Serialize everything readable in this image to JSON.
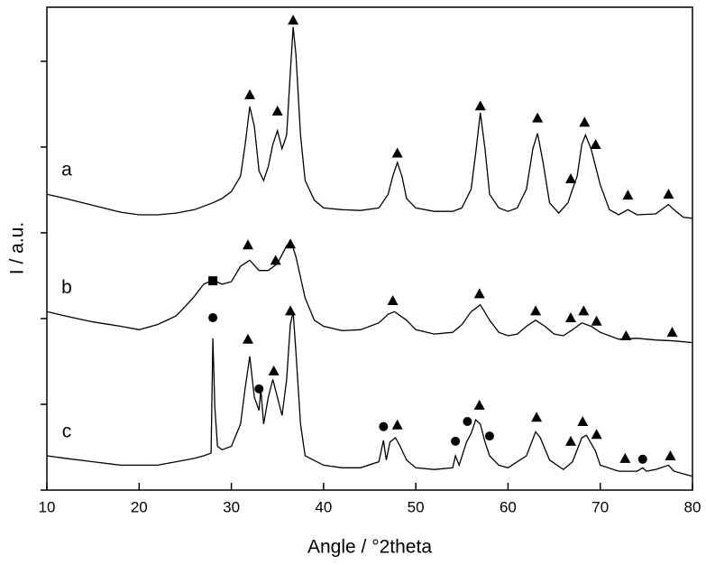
{
  "chart_data": {
    "type": "line",
    "xlabel": "Angle / °2theta",
    "ylabel": "I / a.u.",
    "xlim": [
      10,
      80
    ],
    "xticks": [
      10,
      20,
      30,
      40,
      50,
      60,
      70,
      80
    ],
    "ylim": [
      0,
      5.63
    ],
    "yticks": [
      0,
      1,
      2,
      3,
      4,
      5
    ],
    "color": "#000000",
    "series": [
      {
        "name": "a",
        "x": [
          10,
          12,
          15,
          18,
          20,
          22,
          24,
          26,
          28,
          29,
          30,
          31,
          31.5,
          32,
          32.5,
          33,
          33.5,
          34,
          34.5,
          35,
          35.5,
          36,
          36.4,
          36.7,
          37,
          37.5,
          38,
          39,
          40,
          42,
          44,
          46,
          47,
          47.5,
          48,
          48.5,
          49,
          50,
          52,
          54,
          55,
          56,
          56.5,
          57,
          57.5,
          58,
          59,
          60,
          61,
          62,
          62.7,
          63.2,
          63.8,
          64.5,
          65.5,
          66.5,
          67,
          67.5,
          68,
          68.4,
          69,
          69.5,
          70,
          71,
          72,
          73,
          74,
          76,
          77.4,
          78,
          79,
          80
        ],
        "values": [
          3.45,
          3.4,
          3.32,
          3.24,
          3.21,
          3.21,
          3.23,
          3.27,
          3.35,
          3.4,
          3.48,
          3.66,
          4.03,
          4.47,
          4.24,
          3.72,
          3.61,
          3.77,
          4.03,
          4.19,
          3.98,
          4.14,
          4.87,
          5.4,
          5.08,
          4.14,
          3.61,
          3.38,
          3.29,
          3.27,
          3.26,
          3.29,
          3.45,
          3.66,
          3.82,
          3.66,
          3.4,
          3.29,
          3.25,
          3.25,
          3.29,
          3.51,
          3.93,
          4.4,
          3.98,
          3.45,
          3.29,
          3.25,
          3.29,
          3.51,
          3.98,
          4.16,
          3.82,
          3.35,
          3.23,
          3.35,
          3.51,
          3.66,
          4.03,
          4.14,
          3.98,
          3.77,
          3.56,
          3.27,
          3.21,
          3.27,
          3.21,
          3.22,
          3.33,
          3.27,
          3.18,
          3.17
        ],
        "markers": [
          {
            "shape": "triangle",
            "x": 32,
            "y": 4.61
          },
          {
            "shape": "triangle",
            "x": 35,
            "y": 4.42
          },
          {
            "shape": "triangle",
            "x": 36.7,
            "y": 5.48
          },
          {
            "shape": "triangle",
            "x": 48,
            "y": 3.93
          },
          {
            "shape": "triangle",
            "x": 57,
            "y": 4.48
          },
          {
            "shape": "triangle",
            "x": 63.2,
            "y": 4.34
          },
          {
            "shape": "triangle",
            "x": 66.8,
            "y": 3.63
          },
          {
            "shape": "triangle",
            "x": 68.3,
            "y": 4.29
          },
          {
            "shape": "triangle",
            "x": 69.5,
            "y": 4.03
          },
          {
            "shape": "triangle",
            "x": 73,
            "y": 3.44
          },
          {
            "shape": "triangle",
            "x": 77.4,
            "y": 3.45
          }
        ]
      },
      {
        "name": "b",
        "x": [
          10,
          12,
          15,
          18,
          20,
          22,
          24,
          25,
          26,
          27,
          28,
          29,
          30,
          31,
          32,
          33,
          34,
          35,
          36,
          36.5,
          37,
          38,
          39,
          40,
          42,
          44,
          46,
          47,
          47.7,
          49,
          50,
          52,
          54,
          55,
          56,
          57,
          58,
          59,
          60,
          61,
          62,
          63,
          64,
          65,
          66,
          67,
          68,
          69,
          70,
          72,
          74,
          76,
          78,
          80
        ],
        "values": [
          2.08,
          2.03,
          1.96,
          1.91,
          1.87,
          1.93,
          2.03,
          2.14,
          2.26,
          2.4,
          2.45,
          2.4,
          2.43,
          2.61,
          2.68,
          2.56,
          2.56,
          2.64,
          2.85,
          2.89,
          2.72,
          2.24,
          1.98,
          1.91,
          1.86,
          1.87,
          1.95,
          2.05,
          2.08,
          1.98,
          1.87,
          1.82,
          1.84,
          1.93,
          2.08,
          2.16,
          1.98,
          1.84,
          1.8,
          1.82,
          1.91,
          1.98,
          1.91,
          1.82,
          1.8,
          1.87,
          1.95,
          1.91,
          1.84,
          1.76,
          1.77,
          1.75,
          1.74,
          1.72
        ],
        "markers": [
          {
            "shape": "square",
            "x": 28,
            "y": 2.44
          },
          {
            "shape": "circle",
            "x": 28,
            "y": 2.01
          },
          {
            "shape": "triangle",
            "x": 31.8,
            "y": 2.86
          },
          {
            "shape": "triangle",
            "x": 34.8,
            "y": 2.68
          },
          {
            "shape": "triangle",
            "x": 36.4,
            "y": 2.87
          },
          {
            "shape": "triangle",
            "x": 47.5,
            "y": 2.21
          },
          {
            "shape": "triangle",
            "x": 56.9,
            "y": 2.29
          },
          {
            "shape": "triangle",
            "x": 63,
            "y": 2.09
          },
          {
            "shape": "triangle",
            "x": 66.8,
            "y": 2.01
          },
          {
            "shape": "triangle",
            "x": 68.2,
            "y": 2.09
          },
          {
            "shape": "triangle",
            "x": 69.6,
            "y": 1.97
          },
          {
            "shape": "triangle",
            "x": 72.8,
            "y": 1.8
          },
          {
            "shape": "triangle",
            "x": 77.8,
            "y": 1.84
          }
        ]
      },
      {
        "name": "c",
        "x": [
          10,
          12,
          15,
          18,
          20,
          22,
          24,
          26,
          27,
          27.8,
          28,
          28.2,
          28.5,
          29,
          30,
          31,
          31.5,
          32,
          32.5,
          33,
          33.2,
          33.5,
          34,
          34.5,
          35,
          35.5,
          36,
          36.4,
          36.7,
          37,
          37.5,
          38,
          40,
          42,
          44,
          46,
          46.5,
          46.8,
          47.2,
          47.8,
          48.3,
          49,
          50,
          52,
          54,
          54.3,
          54.7,
          55.5,
          56,
          56.5,
          57,
          57.5,
          58,
          59,
          60,
          62,
          63,
          63.5,
          64.5,
          66,
          67,
          68,
          68.5,
          69.5,
          70,
          72,
          74,
          74.6,
          75,
          76,
          77.4,
          78,
          80
        ],
        "values": [
          0.4,
          0.37,
          0.33,
          0.29,
          0.29,
          0.29,
          0.33,
          0.37,
          0.4,
          0.43,
          1.77,
          0.98,
          0.51,
          0.47,
          0.51,
          0.77,
          1.19,
          1.56,
          1.08,
          0.93,
          1.17,
          0.77,
          1.08,
          1.29,
          1.08,
          0.87,
          1.29,
          1.93,
          2.08,
          1.61,
          0.77,
          0.4,
          0.29,
          0.26,
          0.26,
          0.33,
          0.58,
          0.35,
          0.56,
          0.61,
          0.51,
          0.35,
          0.26,
          0.24,
          0.26,
          0.4,
          0.29,
          0.56,
          0.66,
          0.82,
          0.77,
          0.56,
          0.4,
          0.29,
          0.26,
          0.4,
          0.68,
          0.61,
          0.35,
          0.24,
          0.33,
          0.61,
          0.64,
          0.45,
          0.29,
          0.22,
          0.22,
          0.26,
          0.22,
          0.24,
          0.29,
          0.22,
          0.16
        ],
        "markers": [
          {
            "shape": "triangle",
            "x": 31.8,
            "y": 1.76
          },
          {
            "shape": "circle",
            "x": 33,
            "y": 1.18
          },
          {
            "shape": "triangle",
            "x": 34.6,
            "y": 1.39
          },
          {
            "shape": "triangle",
            "x": 36.4,
            "y": 2.09
          },
          {
            "shape": "circle",
            "x": 46.5,
            "y": 0.74
          },
          {
            "shape": "triangle",
            "x": 48,
            "y": 0.76
          },
          {
            "shape": "circle",
            "x": 54.3,
            "y": 0.57
          },
          {
            "shape": "circle",
            "x": 55.6,
            "y": 0.8
          },
          {
            "shape": "triangle",
            "x": 56.9,
            "y": 0.99
          },
          {
            "shape": "circle",
            "x": 58,
            "y": 0.63
          },
          {
            "shape": "triangle",
            "x": 63.1,
            "y": 0.85
          },
          {
            "shape": "triangle",
            "x": 66.8,
            "y": 0.57
          },
          {
            "shape": "triangle",
            "x": 68.1,
            "y": 0.8
          },
          {
            "shape": "triangle",
            "x": 69.6,
            "y": 0.65
          },
          {
            "shape": "triangle",
            "x": 72.7,
            "y": 0.37
          },
          {
            "shape": "circle",
            "x": 74.6,
            "y": 0.36
          },
          {
            "shape": "triangle",
            "x": 77.6,
            "y": 0.4
          }
        ]
      }
    ]
  }
}
